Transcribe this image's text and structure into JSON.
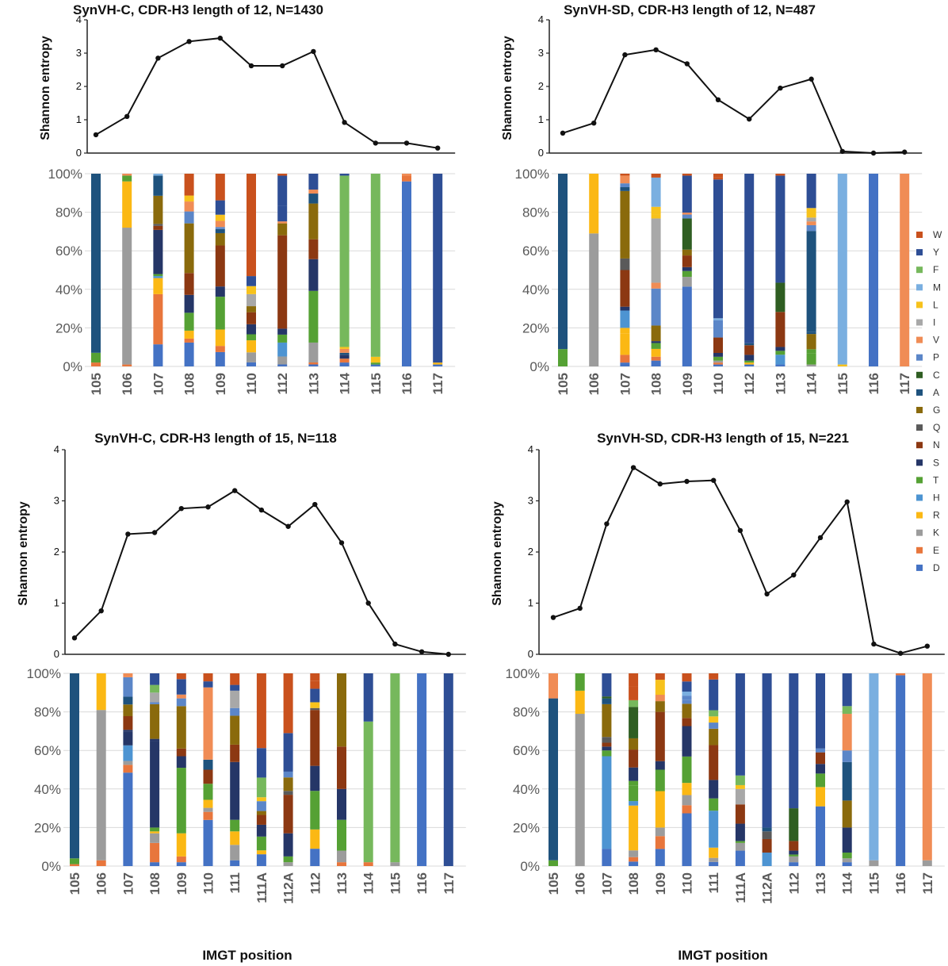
{
  "amino_acids": [
    "W",
    "Y",
    "F",
    "M",
    "L",
    "I",
    "V",
    "P",
    "C",
    "A",
    "G",
    "Q",
    "N",
    "S",
    "T",
    "H",
    "R",
    "K",
    "E",
    "D"
  ],
  "colors": {
    "W": "#c9511d",
    "Y": "#2e4e95",
    "F": "#76b85c",
    "M": "#7aafe0",
    "L": "#f7c21c",
    "I": "#a8a8a8",
    "V": "#f08c55",
    "P": "#5b86c8",
    "C": "#2f5e22",
    "A": "#1e527d",
    "G": "#8a6a0c",
    "Q": "#5a5a5a",
    "N": "#8c3812",
    "S": "#253667",
    "T": "#55a134",
    "H": "#4d94d2",
    "R": "#fbb814",
    "K": "#9c9c9c",
    "E": "#e8763c",
    "D": "#4472c4"
  },
  "x_axis_title": "IMGT position",
  "entropy_axis_label": "Shannon entropy",
  "percent_ticks": [
    "0%",
    "20%",
    "40%",
    "60%",
    "80%",
    "100%"
  ],
  "entropy_ticks": [
    "0",
    "1",
    "2",
    "3",
    "4"
  ],
  "chart_data": [
    {
      "type": "line+stacked-bar",
      "title": "SynVH-C, CDR-H3 length of 12, N=1430",
      "xlabel": "IMGT position",
      "ylabel": "Shannon entropy",
      "ylim": [
        0,
        4
      ],
      "positions": [
        "105",
        "106",
        "107",
        "108",
        "109",
        "110",
        "112",
        "113",
        "114",
        "115",
        "116",
        "117"
      ],
      "entropy": [
        0.55,
        1.1,
        2.85,
        3.35,
        3.45,
        2.62,
        2.62,
        3.05,
        0.92,
        0.3,
        0.3,
        0.15
      ],
      "composition": [
        {
          "T": 5,
          "A": 92,
          "E": 2
        },
        {
          "E": 1,
          "K": 71,
          "R": 24,
          "T": 3,
          "V": 1
        },
        {
          "D": 11,
          "E": 25,
          "R": 8,
          "H": 1,
          "T": 1,
          "S": 22,
          "N": 2,
          "Q": 1,
          "G": 14,
          "A": 10,
          "M": 1
        },
        {
          "D": 12,
          "E": 2,
          "R": 4,
          "T": 9,
          "S": 9,
          "N": 11,
          "G": 25,
          "P": 6,
          "V": 5,
          "L": 3,
          "W": 11
        },
        {
          "D": 7,
          "P": 1,
          "E": 3,
          "R": 8,
          "T": 16,
          "S": 5,
          "N": 20,
          "A": 2,
          "G": 6,
          "V": 3,
          "L": 3,
          "Y": 7,
          "W": 13
        },
        {
          "K": 5,
          "S": 5,
          "R": 6,
          "T": 3,
          "D": 2,
          "N": 6,
          "G": 3,
          "I": 6,
          "L": 4,
          "Y": 5,
          "W": 51
        },
        {
          "D": 1,
          "K": 2,
          "H": 7,
          "S": 3,
          "T": 4,
          "Y": 8,
          "N": 47,
          "G": 6,
          "K2": 2,
          "Y2": 15,
          "V": 1,
          "W": 1
        },
        {
          "D": 1,
          "E": 1,
          "T": 26,
          "S": 16,
          "N": 10,
          "G": 18,
          "V": 2,
          "A": 5,
          "K": 10,
          "Y": 8,
          "F": 0
        },
        {
          "D": 2,
          "E": 2,
          "S": 2,
          "A": 1,
          "L": 1,
          "V": 2,
          "F": 88,
          "T": 0,
          "Y": 1
        },
        {
          "D": 1,
          "T": 1,
          "L": 3,
          "F": 95
        },
        {
          "D": 96,
          "E": 3,
          "V": 1
        },
        {
          "D": 1,
          "Y": 98,
          "R": 1
        }
      ]
    },
    {
      "type": "line+stacked-bar",
      "title": "SynVH-SD, CDR-H3 length of 12, N=487",
      "xlabel": "IMGT position",
      "ylabel": "Shannon entropy",
      "ylim": [
        0,
        4
      ],
      "positions": [
        "105",
        "106",
        "107",
        "108",
        "109",
        "110",
        "112",
        "113",
        "114",
        "115",
        "116",
        "117"
      ],
      "entropy": [
        0.6,
        0.9,
        2.95,
        3.1,
        2.68,
        1.6,
        1.02,
        1.95,
        2.22,
        0.05,
        0.0,
        0.03
      ],
      "composition": [
        {
          "T": 9,
          "A": 91
        },
        {
          "K": 69,
          "R": 31
        },
        {
          "D": 2,
          "E": 4,
          "R": 11,
          "H": 9,
          "S": 2,
          "N": 19,
          "Q": 6,
          "G": 35,
          "V": 4,
          "R2": 3,
          "P": 2,
          "A": 2,
          "W": 1
        },
        {
          "D": 3,
          "E": 2,
          "R": 4,
          "L": 2,
          "T": 3,
          "S": 1,
          "G": 8,
          "P": 19,
          "V": 3,
          "I": 33,
          "L2": 4,
          "M": 15,
          "W": 2
        },
        {
          "D": 41,
          "K": 5,
          "P": 2,
          "N": 6,
          "S": 2,
          "T": 3,
          "G": 3,
          "C": 16,
          "V": 1,
          "Y": 19,
          "W": 1
        },
        {
          "D": 1,
          "E": 1,
          "K": 1,
          "S": 2,
          "N": 8,
          "W": 1,
          "T": 2,
          "P": 9,
          "M": 1,
          "Y": 72,
          "W2": 2
        },
        {
          "D": 1,
          "R": 1,
          "S": 3,
          "T": 1,
          "N": 5,
          "A": 1,
          "Y": 88
        },
        {
          "D": 1,
          "H": 5,
          "S": 2,
          "N": 18,
          "C": 15,
          "T": 2,
          "Y": 55,
          "W": 1
        },
        {
          "T": 6,
          "A": 1,
          "G": 8,
          "A2": 53,
          "P": 3,
          "V": 2,
          "I": 2,
          "K": 1,
          "L": 5,
          "T2": 2,
          "Y": 18
        },
        {
          "L": 1,
          "M": 99
        },
        {
          "D": 100
        },
        {
          "V": 100
        }
      ]
    },
    {
      "type": "line+stacked-bar",
      "title": "SynVH-C, CDR-H3 length of 15, N=118",
      "xlabel": "IMGT position",
      "ylabel": "Shannon entropy",
      "ylim": [
        0,
        4
      ],
      "positions": [
        "105",
        "106",
        "107",
        "108",
        "109",
        "110",
        "111",
        "111A",
        "112A",
        "112",
        "113",
        "114",
        "115",
        "116",
        "117"
      ],
      "entropy": [
        0.32,
        0.85,
        2.35,
        2.38,
        2.85,
        2.88,
        3.2,
        2.82,
        2.5,
        2.93,
        2.18,
        1.0,
        0.2,
        0.05,
        0.0
      ],
      "composition": [
        {
          "T": 3,
          "A": 96,
          "E": 1
        },
        {
          "E": 3,
          "K": 78,
          "R": 19
        },
        {
          "D": 48,
          "E": 4,
          "H": 8,
          "S": 7,
          "N": 7,
          "G": 6,
          "A": 4,
          "P": 10,
          "V": 2,
          "K": 2,
          "S2": 1
        },
        {
          "D": 2,
          "E": 10,
          "I": 5,
          "K": 5,
          "S": 45,
          "G": 18,
          "S2": 1,
          "T": 2,
          "F": 4,
          "R": 1,
          "P": 1,
          "Y": 6
        },
        {
          "D": 2,
          "E": 3,
          "R": 12,
          "T": 34,
          "S": 6,
          "N": 4,
          "G": 22,
          "P": 4,
          "V": 2,
          "Y": 8,
          "W": 3
        },
        {
          "D": 23,
          "E": 4,
          "R": 4,
          "T": 8,
          "N": 7,
          "A": 5,
          "K": 2,
          "V": 36,
          "Y": 3,
          "W": 4
        },
        {
          "D": 3,
          "R": 7,
          "T": 6,
          "S": 30,
          "N": 9,
          "G": 15,
          "K": 8,
          "I": 9,
          "P": 4,
          "Y": 3,
          "W": 6
        },
        {
          "D": 6,
          "R": 2,
          "T": 7,
          "S": 6,
          "N": 5,
          "G": 2,
          "L": 2,
          "P": 5,
          "F": 10,
          "Y": 15,
          "W": 38
        },
        {
          "T": 3,
          "S": 12,
          "N": 20,
          "G": 7,
          "Q": 2,
          "K": 2,
          "P": 3,
          "Y": 20,
          "W": 31
        },
        {
          "D": 9,
          "R": 10,
          "T": 20,
          "S": 13,
          "N": 29,
          "Q": 1,
          "L": 3,
          "W": 4,
          "Y": 7,
          "W2": 4
        },
        {
          "E": 2,
          "T": 16,
          "S": 16,
          "N": 22,
          "G": 38,
          "K": 6
        },
        {
          "E": 2,
          "F": 73,
          "Y": 25
        },
        {
          "K": 2,
          "F": 98
        },
        {
          "D": 100
        },
        {
          "Y": 100
        }
      ]
    },
    {
      "type": "line+stacked-bar",
      "title": "SynVH-SD, CDR-H3 length of 15, N=221",
      "xlabel": "IMGT position",
      "ylabel": "Shannon entropy",
      "ylim": [
        0,
        4
      ],
      "positions": [
        "105",
        "106",
        "107",
        "108",
        "109",
        "110",
        "111",
        "111A",
        "112A",
        "112",
        "113",
        "114",
        "115",
        "116",
        "117"
      ],
      "entropy": [
        0.72,
        0.9,
        2.55,
        3.65,
        3.33,
        3.38,
        3.4,
        2.42,
        1.18,
        1.55,
        2.28,
        2.98,
        0.2,
        0.02,
        0.16
      ],
      "composition": [
        {
          "T": 3,
          "A": 84,
          "V": 13
        },
        {
          "K": 79,
          "R": 12,
          "T": 9
        },
        {
          "D": 9,
          "H": 48,
          "T": 3,
          "N": 2,
          "C": 1,
          "G": 17,
          "Q": 3,
          "A": 3,
          "S": 2,
          "Y": 12
        },
        {
          "D": 2,
          "E": 2,
          "K": 3,
          "R": 20,
          "H": 2,
          "T": 7,
          "S": 6,
          "N": 8,
          "G": 5,
          "C": 14,
          "T2": 2,
          "W": 6,
          "F": 3,
          "W2": 6
        },
        {
          "D": 8,
          "E": 6,
          "K": 4,
          "R": 17,
          "T": 10,
          "S": 4,
          "N": 23,
          "G": 5,
          "L": 7,
          "V": 3,
          "W": 3
        },
        {
          "D": 26,
          "E": 4,
          "K": 5,
          "R": 6,
          "P": 2,
          "T": 13,
          "S": 15,
          "N": 4,
          "G": 7,
          "P2": 2,
          "M": 2,
          "Y": 5,
          "W": 4
        },
        {
          "D": 2,
          "K": 2,
          "H": 18,
          "R": 5,
          "T": 6,
          "S": 9,
          "N": 17,
          "G": 8,
          "L": 3,
          "P": 3,
          "F": 3,
          "Y": 15,
          "W": 3
        },
        {
          "D": 8,
          "K": 4,
          "S": 9,
          "N": 10,
          "I": 8,
          "L": 2,
          "F": 5,
          "T": 1,
          "Y": 53
        },
        {
          "H": 7,
          "N": 7,
          "Q": 4,
          "A": 2,
          "Y": 80
        },
        {
          "D": 2,
          "K": 3,
          "S": 2,
          "N": 5,
          "C": 17,
          "T": 1,
          "Y": 70
        },
        {
          "D": 31,
          "R": 10,
          "P": 2,
          "S": 5,
          "N": 6,
          "T": 7,
          "Y": 39
        },
        {
          "D": 2,
          "T": 3,
          "S": 13,
          "G": 14,
          "A": 20,
          "P": 6,
          "V": 19,
          "K": 2,
          "F": 4,
          "Y": 17
        },
        {
          "K": 3,
          "M": 97
        },
        {
          "D": 99,
          "E": 1
        },
        {
          "V": 97,
          "K": 3
        }
      ]
    }
  ]
}
